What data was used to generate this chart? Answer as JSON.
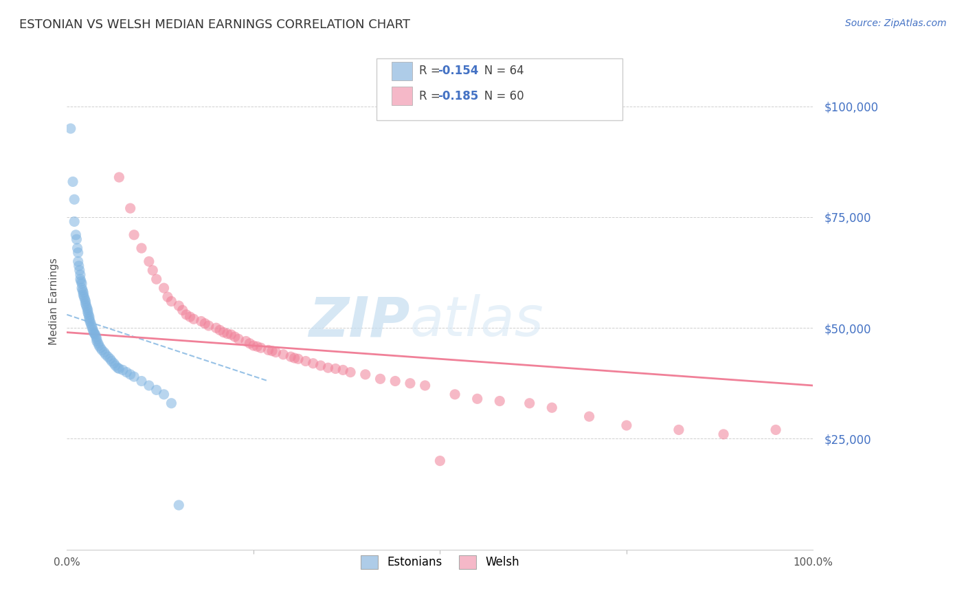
{
  "title": "ESTONIAN VS WELSH MEDIAN EARNINGS CORRELATION CHART",
  "source_text": "Source: ZipAtlas.com",
  "ylabel": "Median Earnings",
  "xlim": [
    0.0,
    1.0
  ],
  "ylim": [
    0,
    112000
  ],
  "yticks": [
    0,
    25000,
    50000,
    75000,
    100000
  ],
  "xtick_labels": [
    "0.0%",
    "100.0%"
  ],
  "watermark_zip": "ZIP",
  "watermark_atlas": "atlas",
  "title_color": "#333333",
  "axis_color": "#4472c4",
  "grid_color": "#b0b0b0",
  "blue_color": "#7eb3e0",
  "pink_color": "#f08098",
  "blue_fill": "#aecce8",
  "pink_fill": "#f5b8c8",
  "r_estonian": "-0.154",
  "n_estonian": "64",
  "r_welsh": "-0.185",
  "n_welsh": "60",
  "estonian_scatter_x": [
    0.005,
    0.008,
    0.01,
    0.01,
    0.012,
    0.013,
    0.014,
    0.015,
    0.015,
    0.016,
    0.017,
    0.018,
    0.018,
    0.019,
    0.02,
    0.02,
    0.021,
    0.022,
    0.022,
    0.023,
    0.024,
    0.025,
    0.025,
    0.026,
    0.027,
    0.028,
    0.028,
    0.029,
    0.03,
    0.03,
    0.031,
    0.032,
    0.033,
    0.034,
    0.035,
    0.036,
    0.037,
    0.038,
    0.039,
    0.04,
    0.04,
    0.042,
    0.043,
    0.045,
    0.047,
    0.05,
    0.052,
    0.055,
    0.058,
    0.06,
    0.063,
    0.065,
    0.068,
    0.07,
    0.075,
    0.08,
    0.085,
    0.09,
    0.1,
    0.11,
    0.12,
    0.13,
    0.14,
    0.15
  ],
  "estonian_scatter_y": [
    95000,
    83000,
    79000,
    74000,
    71000,
    70000,
    68000,
    67000,
    65000,
    64000,
    63000,
    62000,
    61000,
    60500,
    60000,
    59000,
    58500,
    58000,
    57500,
    57000,
    56500,
    56000,
    55500,
    55000,
    54500,
    54000,
    53500,
    53000,
    52500,
    52000,
    51500,
    51000,
    50500,
    50000,
    49500,
    49000,
    48700,
    48500,
    48000,
    47500,
    47000,
    46500,
    46000,
    45500,
    45000,
    44500,
    44000,
    43500,
    43000,
    42500,
    42000,
    41500,
    41000,
    40800,
    40500,
    40000,
    39500,
    39000,
    38000,
    37000,
    36000,
    35000,
    33000,
    10000
  ],
  "welsh_scatter_x": [
    0.07,
    0.085,
    0.09,
    0.1,
    0.11,
    0.115,
    0.12,
    0.13,
    0.135,
    0.14,
    0.15,
    0.155,
    0.16,
    0.165,
    0.17,
    0.18,
    0.185,
    0.19,
    0.2,
    0.205,
    0.21,
    0.215,
    0.22,
    0.225,
    0.23,
    0.24,
    0.245,
    0.25,
    0.255,
    0.26,
    0.27,
    0.275,
    0.28,
    0.29,
    0.3,
    0.305,
    0.31,
    0.32,
    0.33,
    0.34,
    0.35,
    0.36,
    0.37,
    0.38,
    0.4,
    0.42,
    0.44,
    0.46,
    0.48,
    0.5,
    0.52,
    0.55,
    0.58,
    0.62,
    0.65,
    0.7,
    0.75,
    0.82,
    0.88,
    0.95
  ],
  "welsh_scatter_y": [
    84000,
    77000,
    71000,
    68000,
    65000,
    63000,
    61000,
    59000,
    57000,
    56000,
    55000,
    54000,
    53000,
    52500,
    52000,
    51500,
    51000,
    50500,
    50000,
    49500,
    49000,
    48700,
    48500,
    48000,
    47500,
    47000,
    46500,
    46000,
    45800,
    45500,
    45000,
    44800,
    44500,
    44000,
    43500,
    43200,
    43000,
    42500,
    42000,
    41500,
    41000,
    40800,
    40500,
    40000,
    39500,
    38500,
    38000,
    37500,
    37000,
    20000,
    35000,
    34000,
    33500,
    33000,
    32000,
    30000,
    28000,
    27000,
    26000,
    27000
  ],
  "estonian_trendline_x": [
    0.0,
    0.27
  ],
  "estonian_trendline_y": [
    53000,
    38000
  ],
  "welsh_trendline_x": [
    0.0,
    1.0
  ],
  "welsh_trendline_y": [
    49000,
    37000
  ]
}
